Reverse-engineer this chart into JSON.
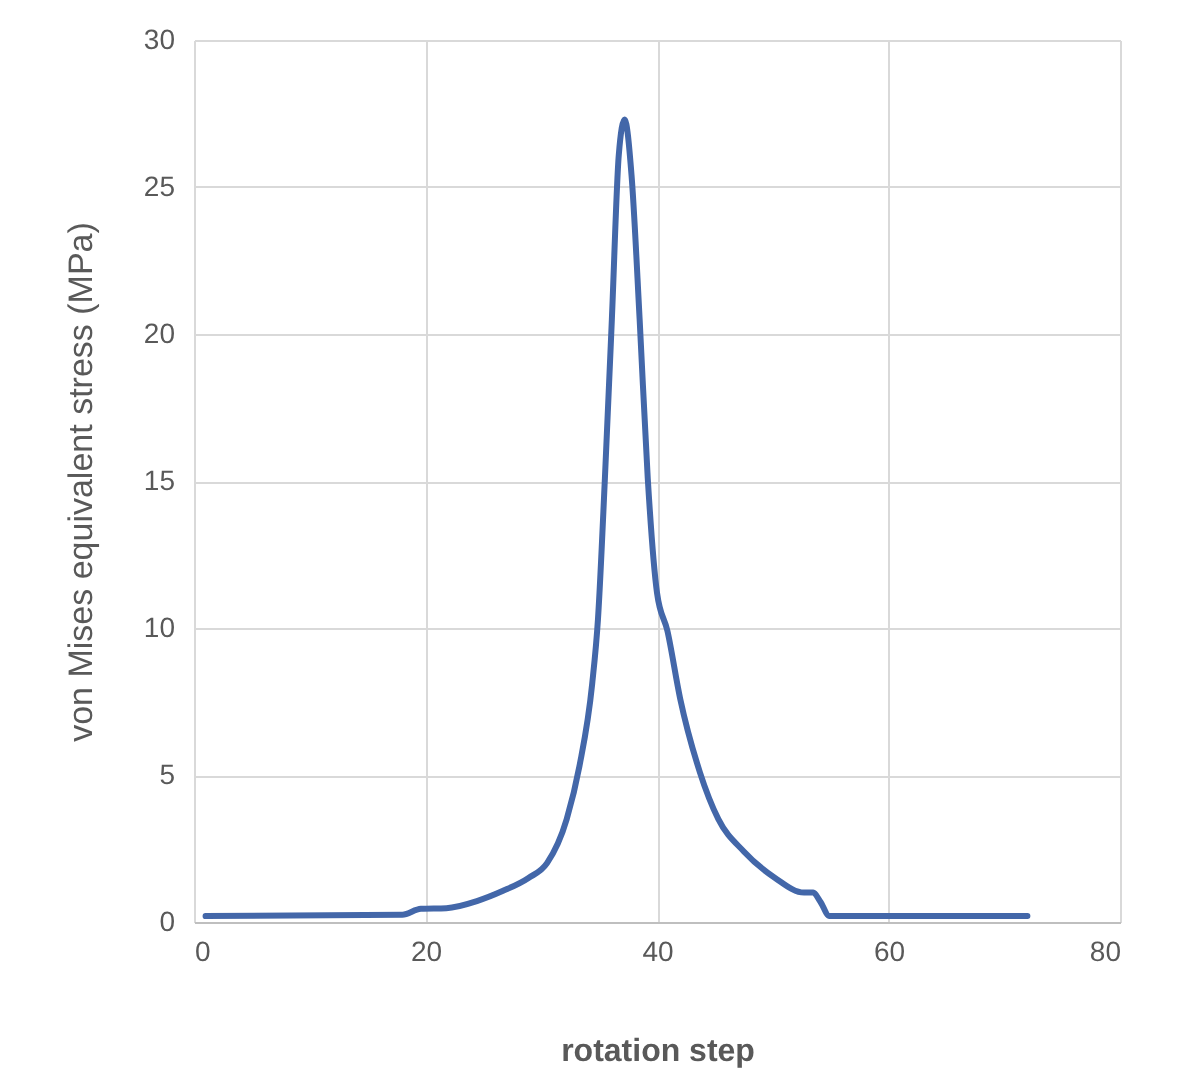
{
  "chart_data": {
    "type": "line",
    "xlabel": "rotation step",
    "ylabel": "von Mises equivalent stress (MPa)",
    "x": [
      1,
      18,
      19.6,
      21.8,
      24.5,
      26.7,
      28.9,
      30.5,
      32.2,
      33.3,
      34.4,
      34.9,
      35.5,
      36.1,
      36.7,
      37.2,
      37.8,
      38.5,
      39.2,
      40,
      40.9,
      42,
      43.7,
      45.3,
      47.5,
      50.2,
      52.7,
      53.5,
      54.1,
      54.9,
      72
    ],
    "series": [
      {
        "color": "#4367a9",
        "values": [
          0.2,
          0.25,
          0.45,
          0.47,
          0.72,
          1.06,
          1.5,
          2.0,
          3.5,
          5.3,
          8.1,
          10.3,
          15.1,
          20.5,
          26.1,
          27.3,
          25.4,
          20.5,
          15.1,
          11.2,
          9.9,
          7.6,
          5.1,
          3.5,
          2.4,
          1.5,
          1.0,
          1.0,
          0.7,
          0.2,
          0.2
        ]
      }
    ],
    "xlim": [
      0,
      80
    ],
    "xticks": [
      0,
      20,
      40,
      60,
      80
    ],
    "ylim": [
      0,
      30
    ],
    "yticks": [
      0,
      5,
      10,
      15,
      20,
      25,
      30
    ],
    "grid": true,
    "marker": "none",
    "line_style": "solid"
  }
}
